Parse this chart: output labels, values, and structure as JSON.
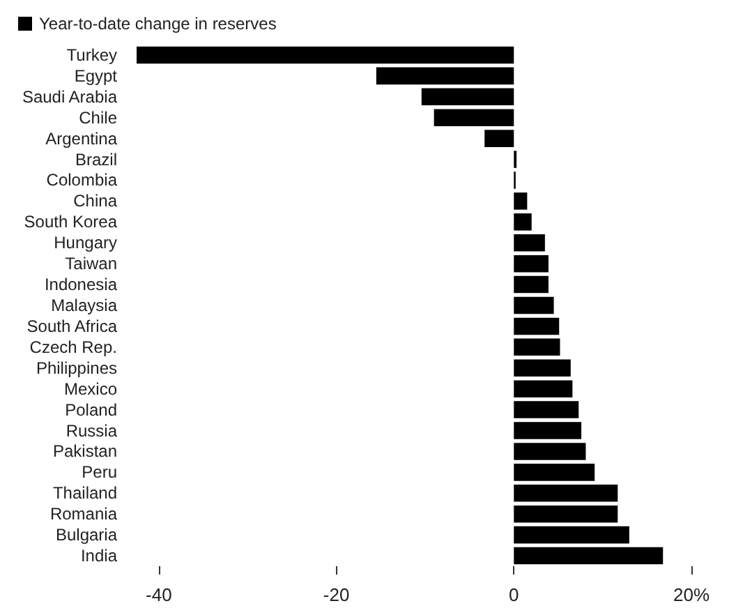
{
  "chart_data": {
    "type": "bar",
    "orientation": "horizontal",
    "categories": [
      "Turkey",
      "Egypt",
      "Saudi Arabia",
      "Chile",
      "Argentina",
      "Brazil",
      "Colombia",
      "China",
      "South Korea",
      "Hungary",
      "Taiwan",
      "Indonesia",
      "Malaysia",
      "South Africa",
      "Czech Rep.",
      "Philippines",
      "Mexico",
      "Poland",
      "Russia",
      "Pakistan",
      "Peru",
      "Thailand",
      "Romania",
      "Bulgaria",
      "India"
    ],
    "series": [
      {
        "name": "Year-to-date change in reserves",
        "color": "#000000",
        "values": [
          -42.5,
          -15.5,
          -10.4,
          -9.0,
          -3.3,
          0.3,
          0.2,
          1.5,
          2.0,
          3.5,
          3.9,
          3.9,
          4.5,
          5.1,
          5.2,
          6.4,
          6.6,
          7.3,
          7.6,
          8.1,
          9.1,
          11.7,
          11.7,
          13.0,
          16.8
        ]
      }
    ],
    "xlim": [
      -42.5,
      20
    ],
    "xticks": [
      -40,
      -20,
      0,
      {
        "value": 20,
        "label": "20%"
      }
    ],
    "grid": false,
    "legend": "top left"
  }
}
